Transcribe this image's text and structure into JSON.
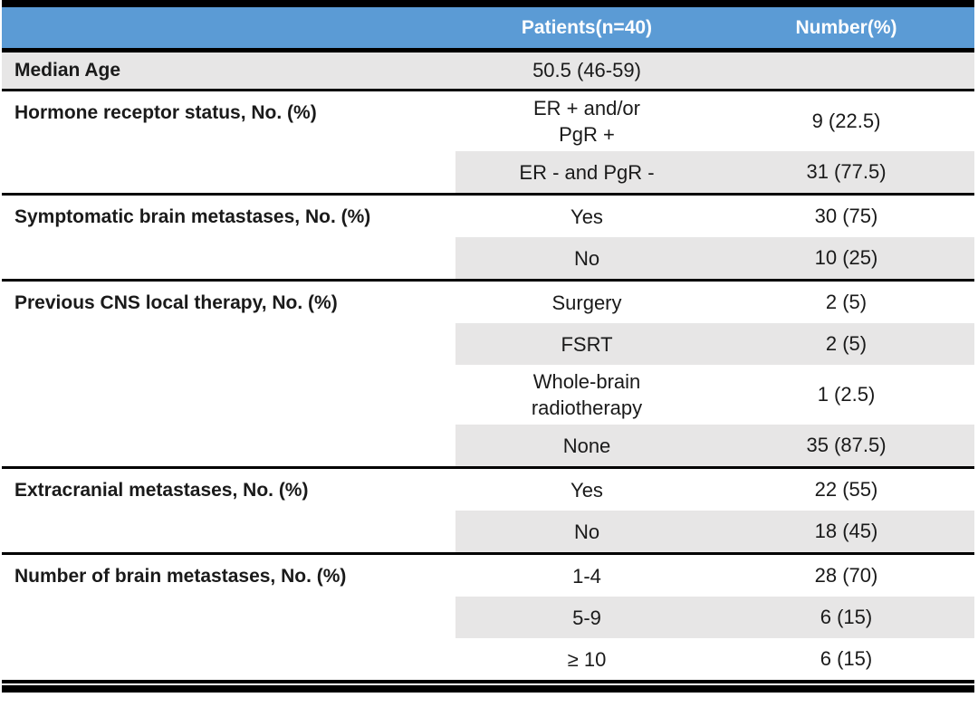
{
  "table": {
    "columns": [
      "Patients(n=40)",
      "Number(%)"
    ],
    "median_row": {
      "label": "Median Age",
      "category": "50.5 (46-59)",
      "value": ""
    },
    "sections": [
      {
        "label": "Hormone receptor status, No. (%)",
        "rows": [
          {
            "category": "ER + and/or\nPgR +",
            "value": "9 (22.5)"
          },
          {
            "category": "ER - and PgR -",
            "value": "31 (77.5)"
          }
        ]
      },
      {
        "label": "Symptomatic brain metastases, No. (%)",
        "rows": [
          {
            "category": "Yes",
            "value": "30 (75)"
          },
          {
            "category": "No",
            "value": "10 (25)"
          }
        ]
      },
      {
        "label": "Previous CNS local therapy, No. (%)",
        "rows": [
          {
            "category": "Surgery",
            "value": "2 (5)"
          },
          {
            "category": "FSRT",
            "value": "2 (5)"
          },
          {
            "category": "Whole-brain\nradiotherapy",
            "value": "1 (2.5)"
          },
          {
            "category": "None",
            "value": "35 (87.5)"
          }
        ]
      },
      {
        "label": "Extracranial metastases, No. (%)",
        "rows": [
          {
            "category": "Yes",
            "value": "22 (55)"
          },
          {
            "category": "No",
            "value": "18 (45)"
          }
        ]
      },
      {
        "label": "Number of brain metastases, No. (%)",
        "rows": [
          {
            "category": "1-4",
            "value": "28 (70)"
          },
          {
            "category": "5-9",
            "value": "6 (15)"
          },
          {
            "category": "≥ 10",
            "value": "6 (15)"
          }
        ]
      }
    ],
    "colors": {
      "header_bg": "#5B9BD5",
      "header_text": "#FFFFFF",
      "row_shade": "#E7E6E6",
      "border": "#000000"
    }
  }
}
